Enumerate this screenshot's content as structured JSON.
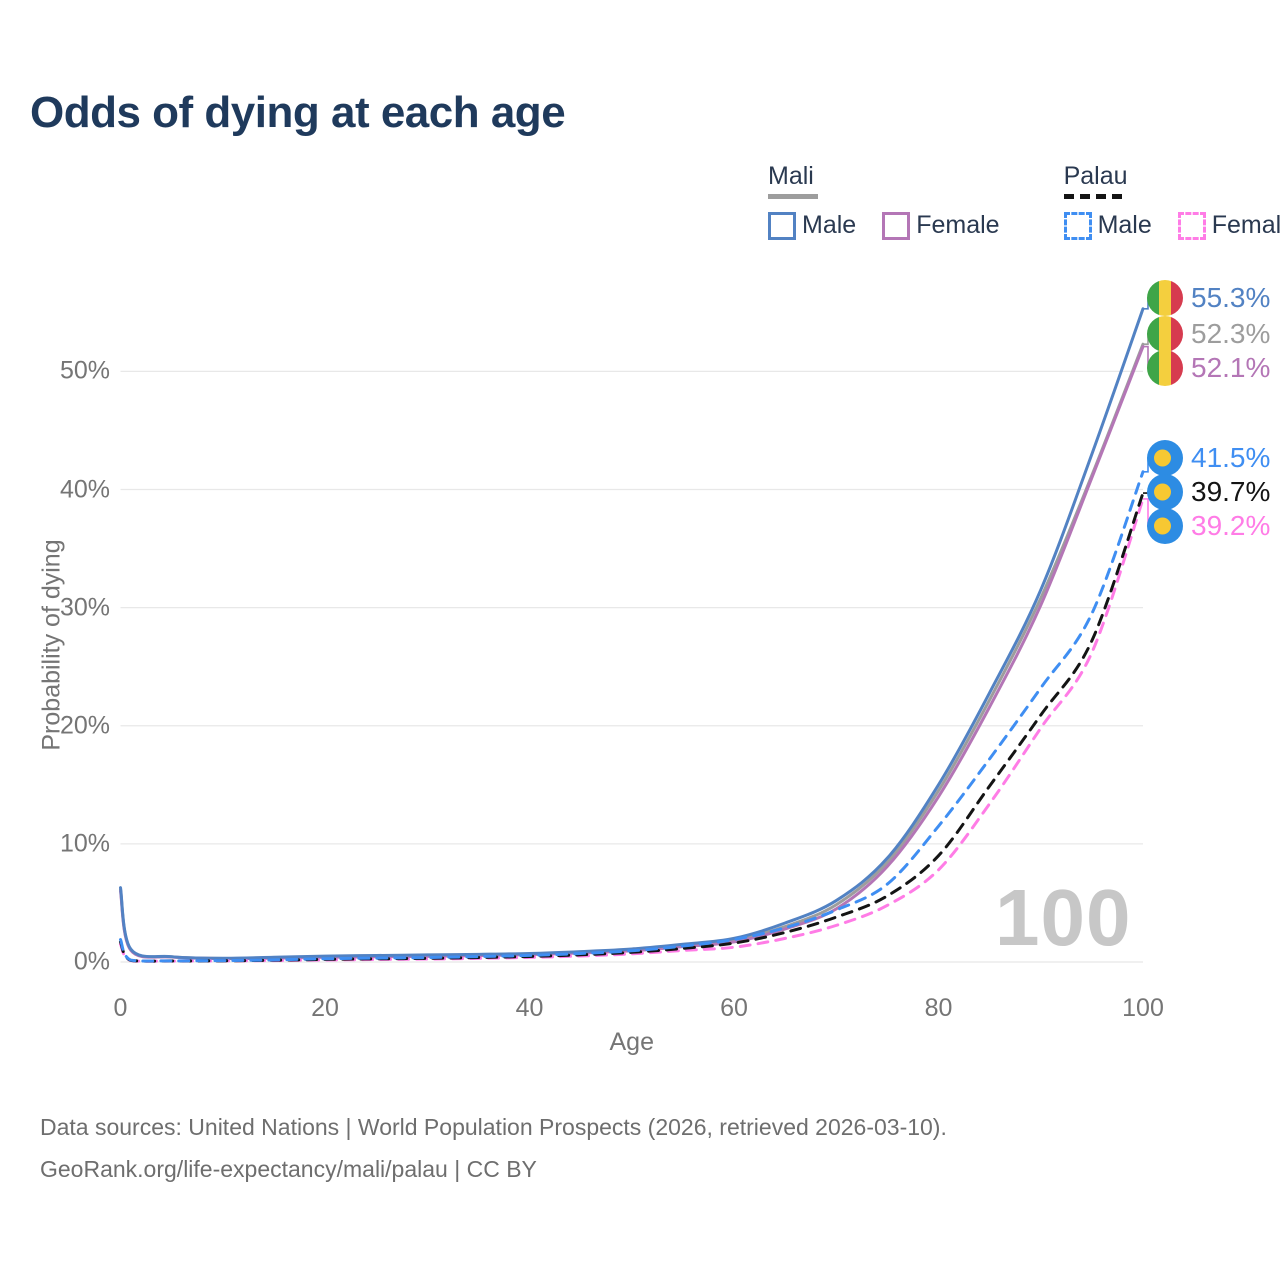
{
  "title": "Odds of dying at each age",
  "watermark": "100",
  "colors": {
    "title_text": "#1f3a5c",
    "legend_text": "#2a3950",
    "axis_text": "#757575",
    "grid": "#e8e8e8",
    "watermark": "#c7c7c7",
    "footer_text": "#6e6e6e"
  },
  "legend": {
    "groups": [
      {
        "name": "Mali",
        "line_style": "solid",
        "color": "#9d9d9d",
        "items": [
          {
            "label": "Male",
            "color": "#5282c3",
            "dashed": false
          },
          {
            "label": "Female",
            "color": "#b476b6",
            "dashed": false
          }
        ]
      },
      {
        "name": "Palau",
        "line_style": "dashed",
        "color": "#141414",
        "items": [
          {
            "label": "Male",
            "color": "#3f8ef2",
            "dashed": true
          },
          {
            "label": "Female",
            "color": "#ff7ce6",
            "dashed": true
          }
        ]
      }
    ]
  },
  "axes": {
    "y_label": "Probability of dying",
    "x_label": "Age",
    "y_ticks": [
      "0%",
      "10%",
      "20%",
      "30%",
      "40%",
      "50%"
    ],
    "y_tick_values": [
      0,
      10,
      20,
      30,
      40,
      50
    ],
    "x_ticks": [
      "0",
      "20",
      "40",
      "60",
      "80",
      "100"
    ],
    "x_tick_values": [
      0,
      20,
      40,
      60,
      80,
      100
    ]
  },
  "footer": {
    "line1": "Data sources: United Nations | World Population Prospects (2026, retrieved 2026-03-10).",
    "line2": "GeoRank.org/life-expectancy/mali/palau | CC BY"
  },
  "flags": {
    "mali": {
      "green": "#3fa548",
      "yellow": "#f4cf3e",
      "red": "#d63b4f"
    },
    "palau": {
      "blue": "#2d8ce3",
      "yellow": "#f7c832"
    }
  },
  "chart_data": {
    "type": "line",
    "title": "Odds of dying at each age",
    "xlabel": "Age",
    "ylabel": "Probability of dying",
    "xlim": [
      0,
      100
    ],
    "ylim": [
      0,
      58
    ],
    "grid": "horizontal",
    "legend_position": "top-right",
    "x": [
      0,
      1,
      5,
      10,
      15,
      20,
      25,
      30,
      35,
      40,
      45,
      50,
      55,
      60,
      65,
      70,
      75,
      80,
      85,
      90,
      95,
      100
    ],
    "series": [
      {
        "name": "Mali Both sexes",
        "country": "Mali",
        "sex": "Both",
        "color": "#9d9d9d",
        "dash": false,
        "flag": "mali",
        "end_label": "52.3%",
        "values": [
          6.15,
          1.05,
          0.44,
          0.3,
          0.36,
          0.45,
          0.49,
          0.54,
          0.59,
          0.67,
          0.82,
          1.02,
          1.4,
          1.85,
          3.0,
          4.85,
          8.45,
          14.5,
          22.2,
          30.8,
          41.2,
          52.3
        ]
      },
      {
        "name": "Mali Female",
        "country": "Mali",
        "sex": "Female",
        "color": "#b476b6",
        "dash": false,
        "flag": "mali",
        "end_label": "52.1%",
        "values": [
          6.0,
          1.0,
          0.42,
          0.29,
          0.33,
          0.4,
          0.44,
          0.48,
          0.54,
          0.62,
          0.76,
          0.95,
          1.3,
          1.7,
          2.8,
          4.5,
          8.1,
          14.0,
          21.6,
          30.2,
          41.0,
          52.1
        ]
      },
      {
        "name": "Mali Male",
        "country": "Mali",
        "sex": "Male",
        "color": "#5282c3",
        "dash": false,
        "flag": "mali",
        "end_label": "55.3%",
        "values": [
          6.3,
          1.1,
          0.45,
          0.32,
          0.4,
          0.5,
          0.55,
          0.6,
          0.65,
          0.72,
          0.88,
          1.1,
          1.5,
          2.0,
          3.3,
          5.2,
          8.8,
          15.0,
          22.8,
          31.5,
          43.0,
          55.3
        ]
      },
      {
        "name": "Palau Female",
        "country": "Palau",
        "sex": "Female",
        "color": "#ff7ce6",
        "dash": true,
        "flag": "palau",
        "end_label": "39.2%",
        "values": [
          1.5,
          0.12,
          0.08,
          0.09,
          0.12,
          0.17,
          0.21,
          0.25,
          0.31,
          0.39,
          0.51,
          0.69,
          0.98,
          1.25,
          2.0,
          3.1,
          4.8,
          7.8,
          13.4,
          19.8,
          26.2,
          39.2
        ]
      },
      {
        "name": "Palau Both sexes",
        "country": "Palau",
        "sex": "Both",
        "color": "#141414",
        "dash": true,
        "flag": "palau",
        "end_label": "39.7%",
        "values": [
          1.7,
          0.14,
          0.09,
          0.1,
          0.15,
          0.22,
          0.27,
          0.31,
          0.38,
          0.47,
          0.61,
          0.82,
          1.15,
          1.6,
          2.5,
          3.8,
          5.6,
          9.0,
          14.9,
          20.9,
          27.2,
          39.7
        ]
      },
      {
        "name": "Palau Male",
        "country": "Palau",
        "sex": "Male",
        "color": "#3f8ef2",
        "dash": true,
        "flag": "palau",
        "end_label": "41.5%",
        "values": [
          1.9,
          0.16,
          0.1,
          0.12,
          0.18,
          0.28,
          0.33,
          0.38,
          0.46,
          0.56,
          0.72,
          0.95,
          1.35,
          1.9,
          2.9,
          4.4,
          6.6,
          11.5,
          17.2,
          23.2,
          29.5,
          41.5
        ]
      }
    ]
  }
}
